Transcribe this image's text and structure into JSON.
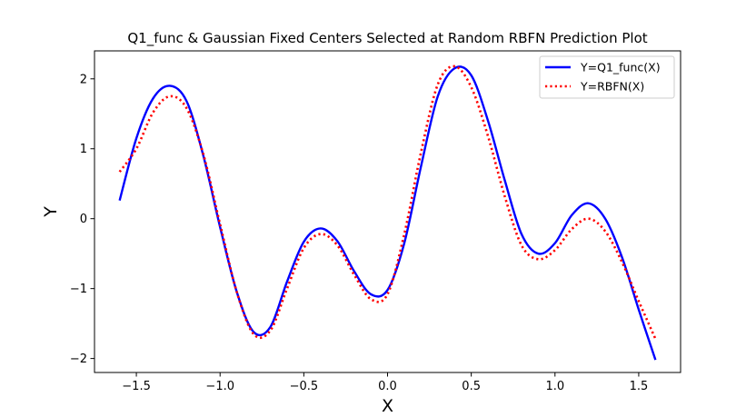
{
  "chart_data": {
    "type": "line",
    "title": "Q1_func & Gaussian Fixed Centers Selected at Random RBFN Prediction Plot",
    "xlabel": "X",
    "ylabel": "Y",
    "xlim": [
      -1.75,
      1.75
    ],
    "ylim": [
      -2.2,
      2.4
    ],
    "xticks": [
      -1.5,
      -1.0,
      -0.5,
      0.0,
      0.5,
      1.0,
      1.5
    ],
    "xtick_labels": [
      "−1.5",
      "−1.0",
      "−0.5",
      "0.0",
      "0.5",
      "1.0",
      "1.5"
    ],
    "yticks": [
      -2,
      -1,
      0,
      1,
      2
    ],
    "ytick_labels": [
      "−2",
      "−1",
      "0",
      "1",
      "2"
    ],
    "grid": false,
    "legend_position": "top-right",
    "series": [
      {
        "name": "Y=Q1_func(X)",
        "color": "#0000ff",
        "style": "solid",
        "points": [
          [
            -1.6,
            0.26
          ],
          [
            -1.5,
            1.15
          ],
          [
            -1.4,
            1.72
          ],
          [
            -1.3,
            1.9
          ],
          [
            -1.2,
            1.68
          ],
          [
            -1.1,
            0.9
          ],
          [
            -1.0,
            -0.12
          ],
          [
            -0.9,
            -1.05
          ],
          [
            -0.8,
            -1.62
          ],
          [
            -0.7,
            -1.55
          ],
          [
            -0.6,
            -0.9
          ],
          [
            -0.5,
            -0.33
          ],
          [
            -0.4,
            -0.14
          ],
          [
            -0.3,
            -0.32
          ],
          [
            -0.2,
            -0.75
          ],
          [
            -0.1,
            -1.08
          ],
          [
            0.0,
            -1.02
          ],
          [
            0.1,
            -0.35
          ],
          [
            0.2,
            0.75
          ],
          [
            0.3,
            1.75
          ],
          [
            0.4,
            2.15
          ],
          [
            0.5,
            2.05
          ],
          [
            0.6,
            1.4
          ],
          [
            0.7,
            0.55
          ],
          [
            0.8,
            -0.22
          ],
          [
            0.9,
            -0.5
          ],
          [
            1.0,
            -0.35
          ],
          [
            1.1,
            0.05
          ],
          [
            1.2,
            0.22
          ],
          [
            1.3,
            0.0
          ],
          [
            1.4,
            -0.55
          ],
          [
            1.5,
            -1.3
          ],
          [
            1.6,
            -2.02
          ]
        ]
      },
      {
        "name": "Y=RBFN(X)",
        "color": "#ff0000",
        "style": "dotted",
        "points": [
          [
            -1.6,
            0.67
          ],
          [
            -1.5,
            1.0
          ],
          [
            -1.4,
            1.52
          ],
          [
            -1.3,
            1.75
          ],
          [
            -1.2,
            1.58
          ],
          [
            -1.1,
            0.92
          ],
          [
            -1.0,
            -0.08
          ],
          [
            -0.9,
            -1.05
          ],
          [
            -0.8,
            -1.65
          ],
          [
            -0.7,
            -1.6
          ],
          [
            -0.6,
            -1.0
          ],
          [
            -0.5,
            -0.42
          ],
          [
            -0.4,
            -0.22
          ],
          [
            -0.3,
            -0.38
          ],
          [
            -0.2,
            -0.8
          ],
          [
            -0.1,
            -1.15
          ],
          [
            0.0,
            -1.08
          ],
          [
            0.1,
            -0.22
          ],
          [
            0.2,
            0.95
          ],
          [
            0.3,
            1.92
          ],
          [
            0.4,
            2.18
          ],
          [
            0.5,
            1.88
          ],
          [
            0.6,
            1.18
          ],
          [
            0.7,
            0.32
          ],
          [
            0.8,
            -0.38
          ],
          [
            0.9,
            -0.58
          ],
          [
            1.0,
            -0.45
          ],
          [
            1.1,
            -0.15
          ],
          [
            1.2,
            0.0
          ],
          [
            1.3,
            -0.18
          ],
          [
            1.4,
            -0.62
          ],
          [
            1.5,
            -1.18
          ],
          [
            1.6,
            -1.72
          ]
        ]
      }
    ]
  }
}
